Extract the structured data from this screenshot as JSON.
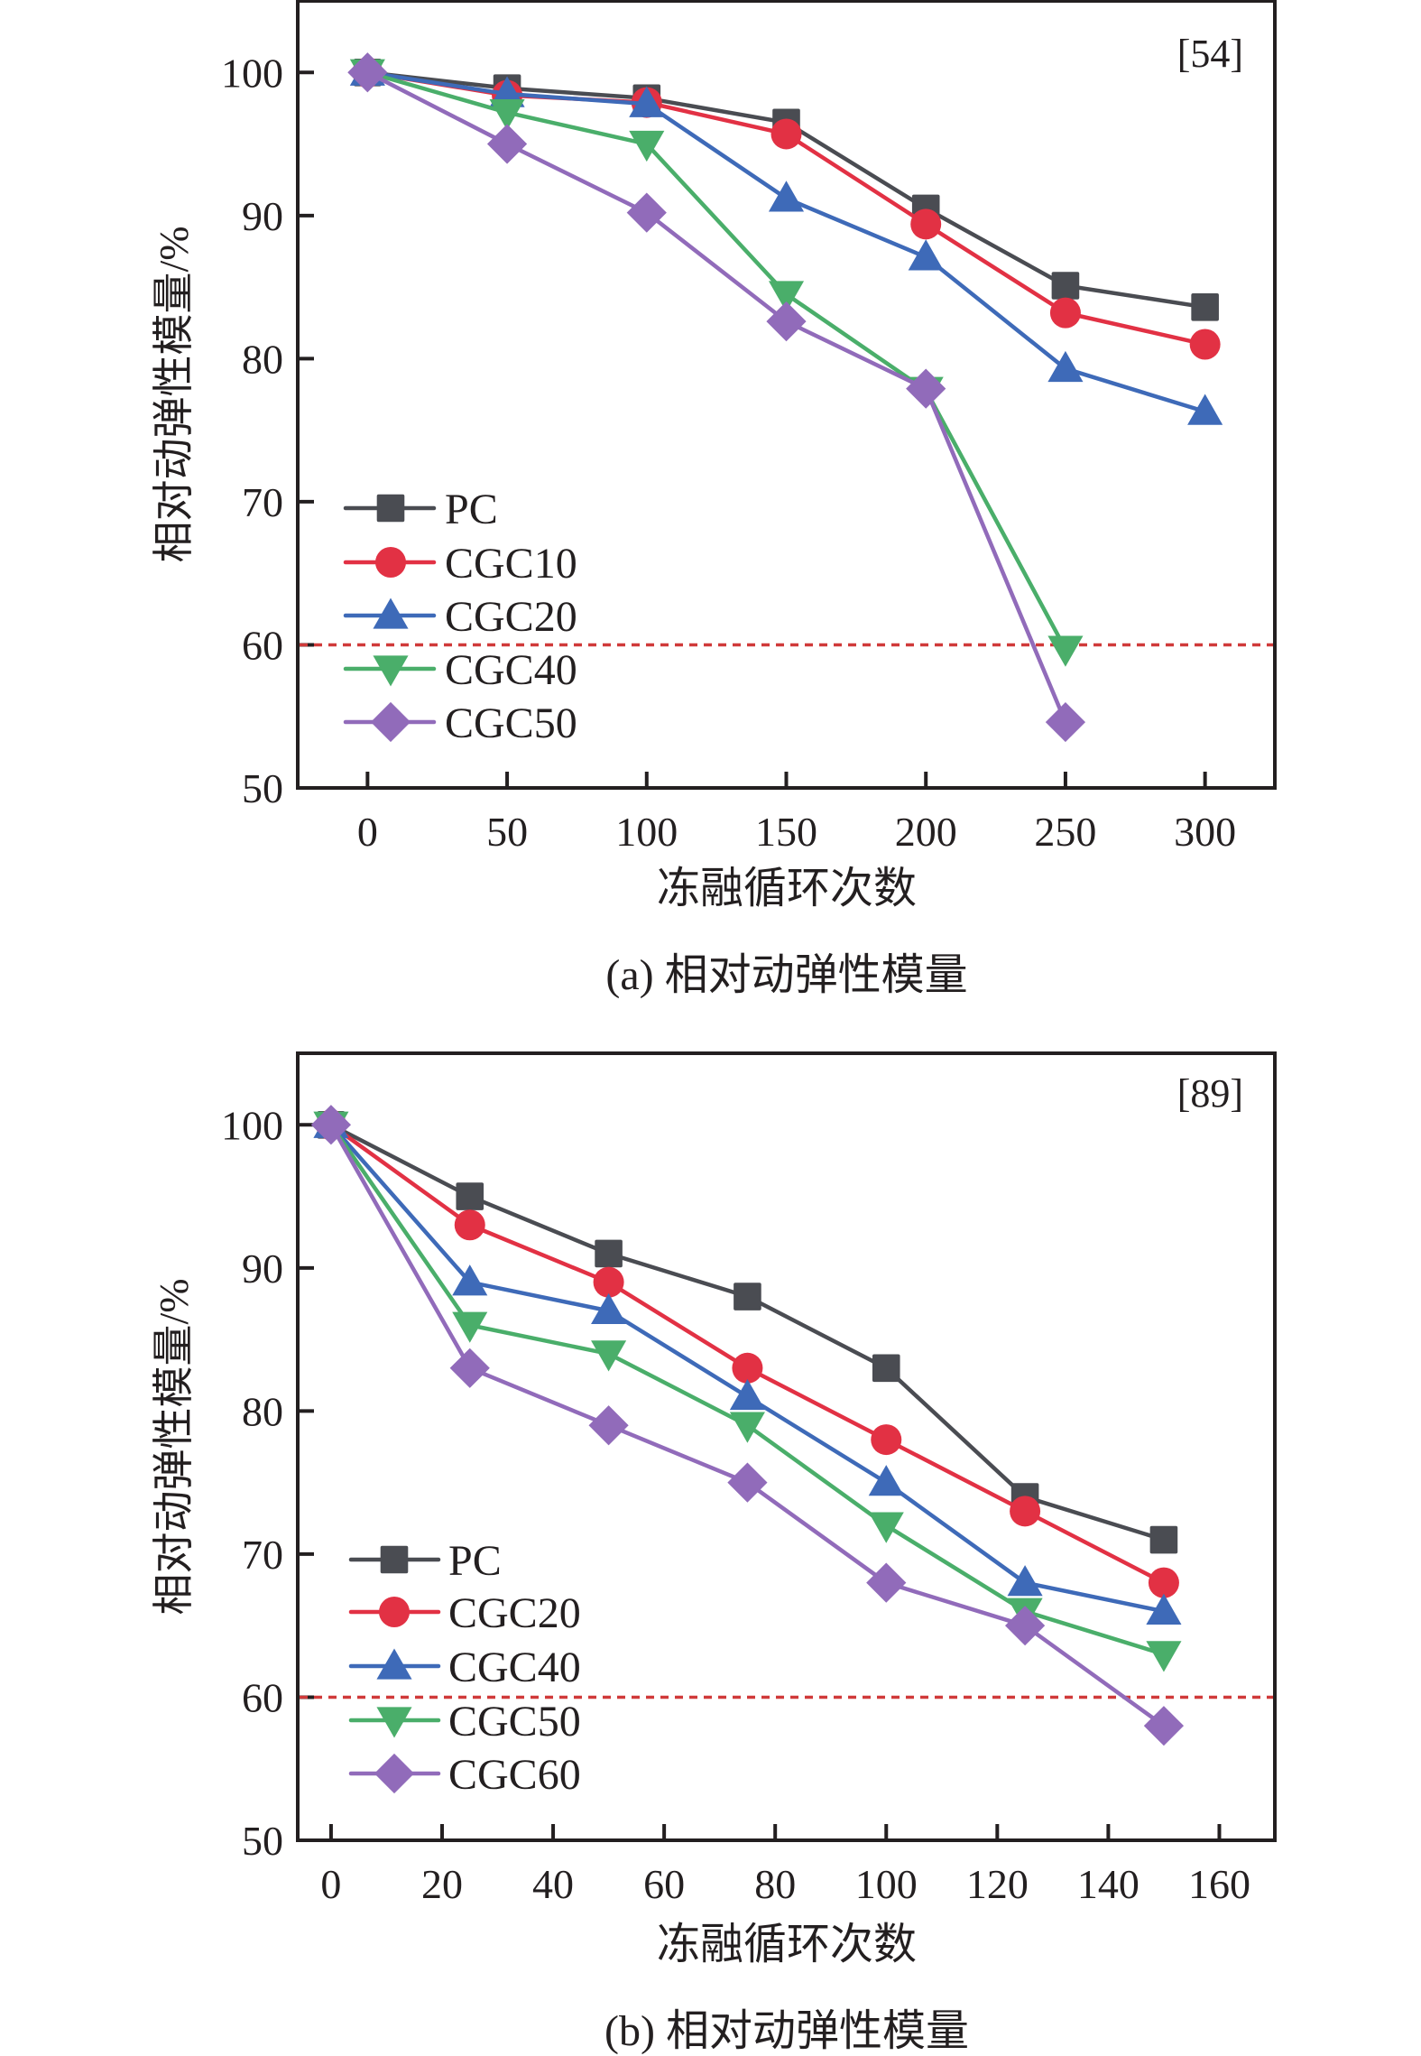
{
  "chart_data": [
    {
      "type": "line",
      "id": "a",
      "caption": "(a) 相对动弹性模量",
      "reference": "[54]",
      "xlabel": "冻融循环次数",
      "ylabel": "相对动弹性模量/%",
      "x": [
        0,
        50,
        100,
        150,
        200,
        250,
        300
      ],
      "xticks": [
        0,
        50,
        100,
        150,
        200,
        250,
        300
      ],
      "yticks": [
        50,
        60,
        70,
        80,
        90,
        100
      ],
      "xlim": [
        -25,
        325
      ],
      "ylim": [
        50,
        105
      ],
      "threshold": 60,
      "legend_position": "bottom-left",
      "grid": false,
      "series": [
        {
          "name": "PC",
          "marker": "square",
          "color": "#4a4c52",
          "values": [
            100,
            98.9,
            98.2,
            96.5,
            90.5,
            85.1,
            83.6
          ]
        },
        {
          "name": "CGC10",
          "marker": "circle",
          "color": "#e23144",
          "values": [
            100,
            98.4,
            97.9,
            95.7,
            89.4,
            83.2,
            81.0
          ]
        },
        {
          "name": "CGC20",
          "marker": "triangle-up",
          "color": "#3e6ab8",
          "values": [
            100,
            98.5,
            97.8,
            91.2,
            87.1,
            79.3,
            76.3
          ]
        },
        {
          "name": "CGC40",
          "marker": "triangle-down",
          "color": "#4aae6a",
          "values": [
            100,
            97.2,
            95.0,
            84.5,
            77.8,
            59.7,
            null
          ]
        },
        {
          "name": "CGC50",
          "marker": "diamond",
          "color": "#916bba",
          "values": [
            100,
            95.0,
            90.2,
            82.6,
            77.9,
            54.6,
            null
          ]
        }
      ]
    },
    {
      "type": "line",
      "id": "b",
      "caption": "(b) 相对动弹性模量",
      "reference": "[89]",
      "xlabel": "冻融循环次数",
      "ylabel": "相对动弹性模量/%",
      "x": [
        0,
        25,
        50,
        75,
        100,
        125,
        150
      ],
      "xticks": [
        0,
        20,
        40,
        60,
        80,
        100,
        120,
        140,
        160
      ],
      "yticks": [
        50,
        60,
        70,
        80,
        90,
        100
      ],
      "xlim": [
        -6,
        170
      ],
      "ylim": [
        50,
        105
      ],
      "threshold": 60,
      "legend_position": "bottom-left",
      "grid": false,
      "series": [
        {
          "name": "PC",
          "marker": "square",
          "color": "#4a4c52",
          "values": [
            100,
            95,
            91,
            88,
            83,
            74,
            71
          ]
        },
        {
          "name": "CGC20",
          "marker": "circle",
          "color": "#e23144",
          "values": [
            100,
            93,
            89,
            83,
            78,
            73,
            68
          ]
        },
        {
          "name": "CGC40",
          "marker": "triangle-up",
          "color": "#3e6ab8",
          "values": [
            100,
            89,
            87,
            81,
            75,
            68,
            66
          ]
        },
        {
          "name": "CGC50",
          "marker": "triangle-down",
          "color": "#4aae6a",
          "values": [
            100,
            86,
            84,
            79,
            72,
            66,
            63
          ]
        },
        {
          "name": "CGC60",
          "marker": "diamond",
          "color": "#916bba",
          "values": [
            100,
            83,
            79,
            75,
            68,
            65,
            58
          ]
        }
      ]
    }
  ],
  "colors": {
    "axis": "#231f20",
    "threshold": "#d03a3a"
  }
}
